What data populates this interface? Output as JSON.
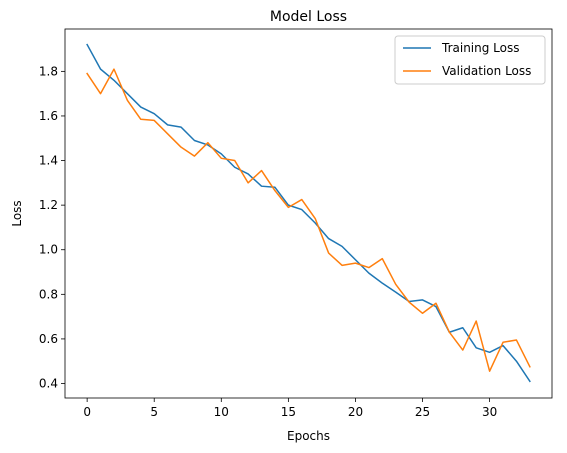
{
  "chart_data": {
    "type": "line",
    "title": "Model Loss",
    "xlabel": "Epochs",
    "ylabel": "Loss",
    "xlim": [
      -1.65,
      34.65
    ],
    "ylim": [
      0.335,
      1.99
    ],
    "xticks": [
      0,
      5,
      10,
      15,
      20,
      25,
      30
    ],
    "yticks": [
      0.4,
      0.6,
      0.8,
      1.0,
      1.2,
      1.4,
      1.6,
      1.8
    ],
    "ytick_labels": [
      "0.4",
      "0.6",
      "0.8",
      "1.0",
      "1.2",
      "1.4",
      "1.6",
      "1.8"
    ],
    "grid": false,
    "legend_position": "top-right",
    "x": [
      0,
      1,
      2,
      3,
      4,
      5,
      6,
      7,
      8,
      9,
      10,
      11,
      12,
      13,
      14,
      15,
      16,
      17,
      18,
      19,
      20,
      21,
      22,
      23,
      24,
      25,
      26,
      27,
      28,
      29,
      30,
      31,
      32,
      33
    ],
    "series": [
      {
        "name": "Training Loss",
        "color": "#1f77b4",
        "values": [
          1.92,
          1.81,
          1.76,
          1.7,
          1.64,
          1.61,
          1.56,
          1.55,
          1.49,
          1.47,
          1.43,
          1.37,
          1.34,
          1.285,
          1.28,
          1.2,
          1.18,
          1.12,
          1.05,
          1.015,
          0.955,
          0.895,
          0.85,
          0.81,
          0.768,
          0.775,
          0.745,
          0.63,
          0.65,
          0.56,
          0.54,
          0.57,
          0.5,
          0.41
        ]
      },
      {
        "name": "Validation Loss",
        "color": "#ff7f0e",
        "values": [
          1.79,
          1.7,
          1.81,
          1.67,
          1.585,
          1.58,
          1.52,
          1.46,
          1.42,
          1.48,
          1.41,
          1.4,
          1.3,
          1.355,
          1.265,
          1.19,
          1.225,
          1.14,
          0.985,
          0.93,
          0.94,
          0.92,
          0.96,
          0.845,
          0.765,
          0.715,
          0.76,
          0.63,
          0.55,
          0.68,
          0.455,
          0.585,
          0.595,
          0.475
        ]
      }
    ]
  }
}
